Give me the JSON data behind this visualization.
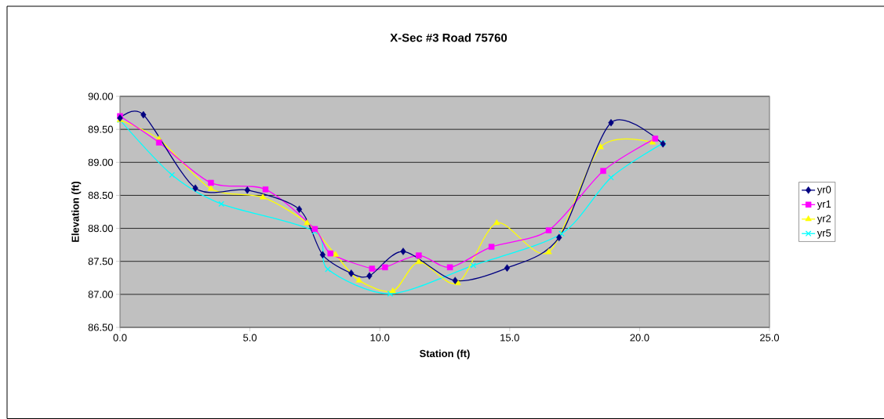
{
  "chart_data": {
    "type": "line",
    "title": "X-Sec #3 Road 75760",
    "xlabel": "Station (ft)",
    "ylabel": "Elevation (ft)",
    "xlim": [
      0,
      25
    ],
    "ylim": [
      86.5,
      90
    ],
    "xticks": [
      {
        "value": 0,
        "label": "0.0"
      },
      {
        "value": 5,
        "label": "5.0"
      },
      {
        "value": 10,
        "label": "10.0"
      },
      {
        "value": 15,
        "label": "15.0"
      },
      {
        "value": 20,
        "label": "20.0"
      },
      {
        "value": 25,
        "label": "25.0"
      }
    ],
    "yticks": [
      {
        "value": 86.5,
        "label": "86.50"
      },
      {
        "value": 87,
        "label": "87.00"
      },
      {
        "value": 87.5,
        "label": "87.50"
      },
      {
        "value": 88,
        "label": "88.00"
      },
      {
        "value": 88.5,
        "label": "88.50"
      },
      {
        "value": 89,
        "label": "89.00"
      },
      {
        "value": 89.5,
        "label": "89.50"
      },
      {
        "value": 90,
        "label": "90.00"
      }
    ],
    "grid": "y",
    "legend": "right",
    "series": [
      {
        "name": "yr0",
        "color": "#000080",
        "marker": "diamond",
        "x": [
          0,
          0.9,
          2.9,
          4.9,
          6.9,
          7.8,
          8.9,
          9.6,
          10.9,
          12.9,
          14.9,
          16.9,
          18.9,
          20.9
        ],
        "values": [
          89.67,
          89.72,
          88.61,
          88.58,
          88.29,
          87.6,
          87.32,
          87.28,
          87.65,
          87.21,
          87.4,
          87.86,
          89.6,
          89.28
        ]
      },
      {
        "name": "yr1",
        "color": "#ff00ff",
        "marker": "square",
        "x": [
          0,
          1.5,
          3.5,
          5.6,
          7.5,
          8.1,
          9.7,
          10.2,
          11.5,
          12.7,
          14.3,
          16.5,
          18.6,
          20.6
        ],
        "values": [
          89.7,
          89.3,
          88.69,
          88.59,
          87.99,
          87.62,
          87.39,
          87.41,
          87.59,
          87.41,
          87.72,
          87.97,
          88.87,
          89.36
        ]
      },
      {
        "name": "yr2",
        "color": "#ffff00",
        "marker": "triangle",
        "x": [
          0,
          1.5,
          3.5,
          5.5,
          7.2,
          8.3,
          9.2,
          10.5,
          11.5,
          13.0,
          14.5,
          16.5,
          18.5,
          20.5
        ],
        "values": [
          89.64,
          89.35,
          88.6,
          88.47,
          88.08,
          87.6,
          87.21,
          87.05,
          87.49,
          87.17,
          88.08,
          87.64,
          89.23,
          89.3
        ]
      },
      {
        "name": "yr5",
        "color": "#00ffff",
        "marker": "cross",
        "x": [
          0,
          2.0,
          3.9,
          7.5,
          8.0,
          10.4,
          13.6,
          17.0,
          18.9,
          20.9
        ],
        "values": [
          89.64,
          88.81,
          88.37,
          87.95,
          87.38,
          87.01,
          87.44,
          87.92,
          88.77,
          89.29
        ]
      }
    ]
  }
}
